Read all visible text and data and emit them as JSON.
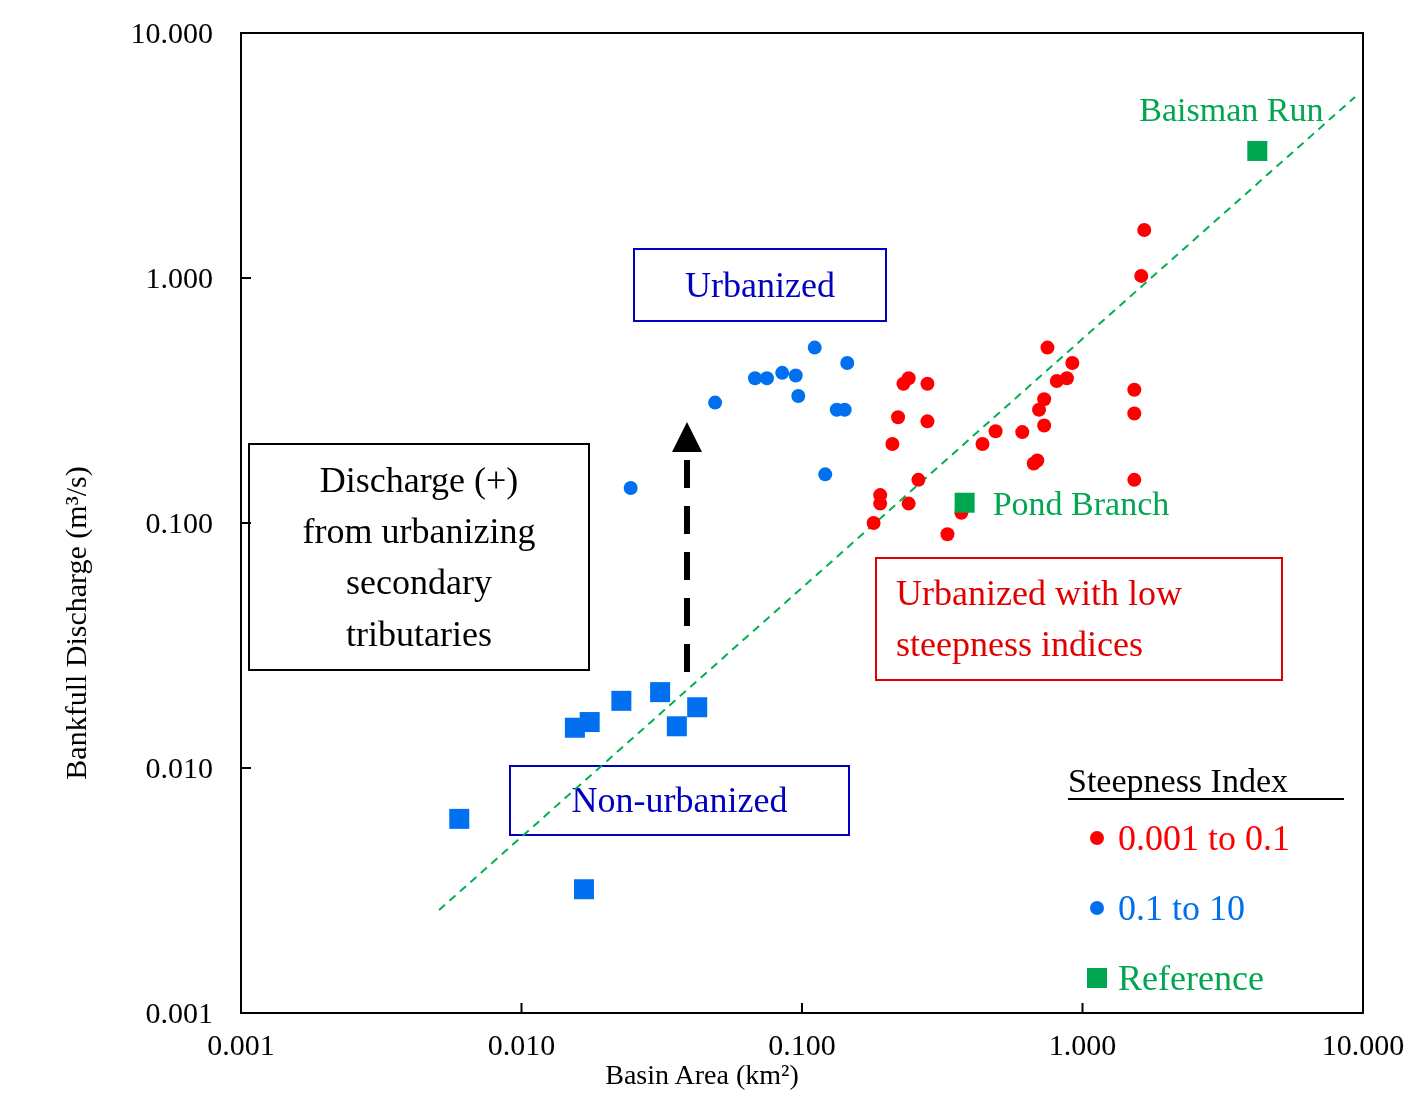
{
  "chart_data": {
    "type": "scatter",
    "xlabel": "Basin Area (km²)",
    "ylabel": "Bankfull Discharge (m³/s)",
    "log": "xy",
    "grid": false,
    "legend": "bottom right",
    "legend_title": "Steepness Index",
    "xlim": [
      0.001,
      10
    ],
    "ylim": [
      0.001,
      10
    ],
    "xticks": [
      {
        "value": 0.001,
        "label": "0.001"
      },
      {
        "value": 0.01,
        "label": "0.010"
      },
      {
        "value": 0.1,
        "label": "0.100"
      },
      {
        "value": 1,
        "label": "1.000"
      },
      {
        "value": 10,
        "label": "10.000"
      }
    ],
    "yticks": [
      {
        "value": 0.001,
        "label": "0.001"
      },
      {
        "value": 0.01,
        "label": "0.010"
      },
      {
        "value": 0.1,
        "label": "0.100"
      },
      {
        "value": 1,
        "label": "1.000"
      },
      {
        "value": 10,
        "label": "10.000"
      }
    ],
    "series": [
      {
        "name": "0.001 to 0.1",
        "marker": "circle",
        "color": "#ff0000",
        "x": [
          1.66,
          1.62,
          0.75,
          0.92,
          0.88,
          0.81,
          0.73,
          0.7,
          0.73,
          0.61,
          0.49,
          0.44,
          0.69,
          0.67,
          1.53,
          1.53,
          1.53,
          0.24,
          0.23,
          0.28,
          0.22,
          0.28,
          0.21,
          0.26,
          0.19,
          0.19,
          0.24,
          0.18,
          0.33,
          0.37
        ],
        "values": [
          1.57,
          1.02,
          0.52,
          0.45,
          0.39,
          0.38,
          0.32,
          0.29,
          0.25,
          0.235,
          0.237,
          0.21,
          0.18,
          0.175,
          0.35,
          0.28,
          0.15,
          0.39,
          0.37,
          0.37,
          0.27,
          0.26,
          0.21,
          0.15,
          0.13,
          0.12,
          0.12,
          0.1,
          0.09,
          0.11
        ]
      },
      {
        "name": "0.1 to 10",
        "marker": "circle",
        "color": "#0070f0",
        "x": [
          0.111,
          0.145,
          0.068,
          0.075,
          0.085,
          0.095,
          0.097,
          0.049,
          0.133,
          0.142,
          0.121,
          0.0245
        ],
        "values": [
          0.52,
          0.45,
          0.39,
          0.39,
          0.41,
          0.4,
          0.33,
          0.31,
          0.29,
          0.29,
          0.158,
          0.139
        ]
      },
      {
        "marker": "square",
        "color": "#0070f0",
        "x": [
          0.006,
          0.0167,
          0.0155,
          0.0175,
          0.0227,
          0.0312,
          0.0358,
          0.0423
        ],
        "values": [
          0.0062,
          0.0032,
          0.0146,
          0.0154,
          0.0188,
          0.0204,
          0.0148,
          0.0177
        ]
      },
      {
        "name": "Reference",
        "marker": "square",
        "color": "#00a650",
        "x": [
          0.38,
          4.2
        ],
        "values": [
          0.121,
          3.3
        ]
      },
      {
        "type": "line",
        "line_style": "dashed",
        "marker": "none",
        "color": "#00b050",
        "x": [
          0.00508,
          9.36
        ],
        "values": [
          0.00263,
          5.48
        ]
      }
    ],
    "annotations": [
      {
        "text": "Baisman Run",
        "x": 4.2,
        "y": 3.3
      },
      {
        "text": "Pond Branch",
        "x": 0.38,
        "y": 0.121
      },
      "Urbanized",
      "Discharge (+)\nfrom urbanizing\nsecondary\ntributaries",
      "Urbanized with low\nsteepness indices",
      "Non-urbanized"
    ]
  }
}
